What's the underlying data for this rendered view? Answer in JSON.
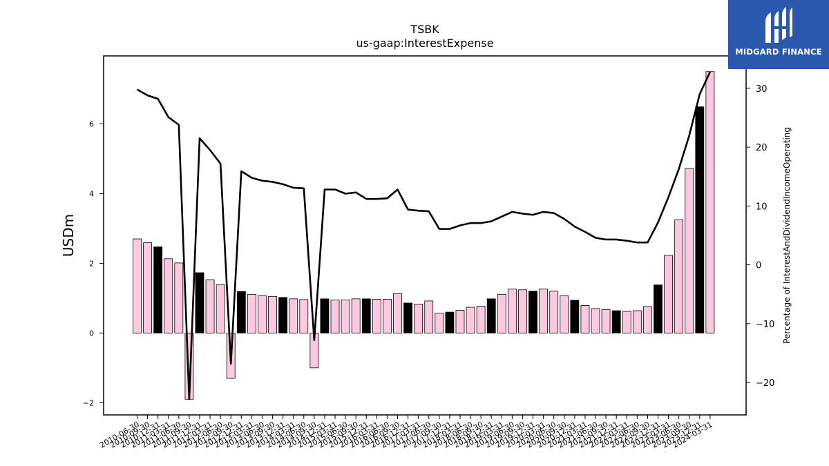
{
  "branding": {
    "logo_text": "MIDGARD FINANCE",
    "background": "#2a58ad"
  },
  "chart_data": {
    "type": "bar",
    "title": "TSBK",
    "subtitle": "us-gaap:InterestExpense",
    "ylabel": "USDm",
    "y2label": "Percentage of InterestAndDividendIncomeOperating",
    "ylim": [
      -2.35,
      7.95
    ],
    "y2lim": [
      -25.5,
      35.5
    ],
    "yticks": [
      -2,
      0,
      2,
      4,
      6
    ],
    "y2ticks": [
      -20,
      -10,
      0,
      10,
      20,
      30
    ],
    "grid": false,
    "colors": {
      "q4_bar": "#000000",
      "bar": "#ffc8e1",
      "bar_edge": "#000000",
      "line": "#000000"
    },
    "categories": [
      "2010-06-30",
      "2010-09-30",
      "2010-12-31",
      "2011-03-31",
      "2011-06-30",
      "2011-09-30",
      "2011-12-31",
      "2012-03-31",
      "2012-06-30",
      "2012-09-30",
      "2012-12-31",
      "2013-03-31",
      "2013-06-30",
      "2013-09-30",
      "2013-12-31",
      "2014-03-31",
      "2014-06-30",
      "2014-09-30",
      "2014-12-31",
      "2015-03-31",
      "2015-06-30",
      "2015-09-30",
      "2015-12-31",
      "2016-03-31",
      "2016-06-30",
      "2016-09-30",
      "2016-12-31",
      "2017-03-31",
      "2017-06-30",
      "2017-09-30",
      "2017-12-31",
      "2018-03-31",
      "2018-06-30",
      "2018-09-30",
      "2018-12-31",
      "2019-03-31",
      "2019-06-30",
      "2019-09-30",
      "2019-12-31",
      "2020-03-31",
      "2020-06-30",
      "2020-09-30",
      "2020-12-31",
      "2021-03-31",
      "2021-06-30",
      "2021-09-30",
      "2021-12-31",
      "2022-03-31",
      "2022-06-30",
      "2022-09-30",
      "2022-12-31",
      "2023-03-31",
      "2023-06-30",
      "2023-09-30",
      "2023-12-31",
      "2024-03-31"
    ],
    "xticklabels": [
      "2010-06-30",
      "2010-09-30",
      "2010-12-31",
      "2011-03-31",
      "2011-06-30",
      "2011-09-30",
      "2011-12-31",
      "2012-03-31",
      "2012-06-30",
      "2012-09-30",
      "2012-12-31",
      "2013-03-31",
      "2013-06-30",
      "2013-09-30",
      "2013-12-31",
      "2014-03-31",
      "2014-06-30",
      "2014-09-30",
      "2014-12-31",
      "2015-03-31",
      "2015-06-30",
      "2015-09-30",
      "2015-12-31",
      "2016-03-31",
      "2016-06-30",
      "2016-09-30",
      "2016-12-31",
      "2017-03-31",
      "2017-06-30",
      "2017-09-30",
      "2017-12-31",
      "2018-03-31",
      "2018-06-30",
      "2018-09-30",
      "2018-12-31",
      "2019-03-31",
      "2019-06-30",
      "2019-09-30",
      "2019-12-31",
      "2020-03-31",
      "2020-06-30",
      "2020-09-30",
      "2020-12-31",
      "2021-03-31",
      "2021-06-30",
      "2021-09-30",
      "2021-12-31",
      "2022-03-31",
      "2022-06-30",
      "2022-09-30",
      "2022-12-31",
      "2023-03-31",
      "2023-06-30",
      "2023-09-30",
      "2023-12-31",
      "2024-03-31"
    ],
    "series": [
      {
        "type": "bar",
        "axis": "left",
        "values": [
          2.7,
          2.59,
          2.47,
          2.13,
          2.01,
          -1.9,
          1.73,
          1.53,
          1.39,
          -1.3,
          1.19,
          1.11,
          1.07,
          1.05,
          1.02,
          0.98,
          0.96,
          -1.0,
          0.98,
          0.95,
          0.95,
          0.98,
          0.98,
          0.97,
          0.97,
          1.13,
          0.86,
          0.83,
          0.92,
          0.57,
          0.6,
          0.65,
          0.74,
          0.77,
          0.98,
          1.11,
          1.26,
          1.24,
          1.2,
          1.26,
          1.2,
          1.07,
          0.94,
          0.79,
          0.7,
          0.67,
          0.64,
          0.62,
          0.64,
          0.76,
          1.38,
          2.23,
          3.25,
          4.72,
          6.49,
          7.5
        ]
      },
      {
        "type": "line",
        "axis": "right",
        "values": [
          29.8,
          28.8,
          28.2,
          25.1,
          23.8,
          -22.8,
          21.5,
          19.5,
          17.2,
          -16.8,
          15.9,
          14.8,
          14.3,
          14.1,
          13.7,
          13.1,
          13.0,
          -12.8,
          12.8,
          12.8,
          12.1,
          12.3,
          11.2,
          11.2,
          11.3,
          12.8,
          9.4,
          9.2,
          9.1,
          6.1,
          6.1,
          6.7,
          7.1,
          7.1,
          7.4,
          8.2,
          9.0,
          8.7,
          8.5,
          9.0,
          8.8,
          7.8,
          6.5,
          5.6,
          4.6,
          4.3,
          4.3,
          4.1,
          3.8,
          3.8,
          7.2,
          11.5,
          16.3,
          22.0,
          29.0,
          32.8
        ]
      }
    ]
  }
}
